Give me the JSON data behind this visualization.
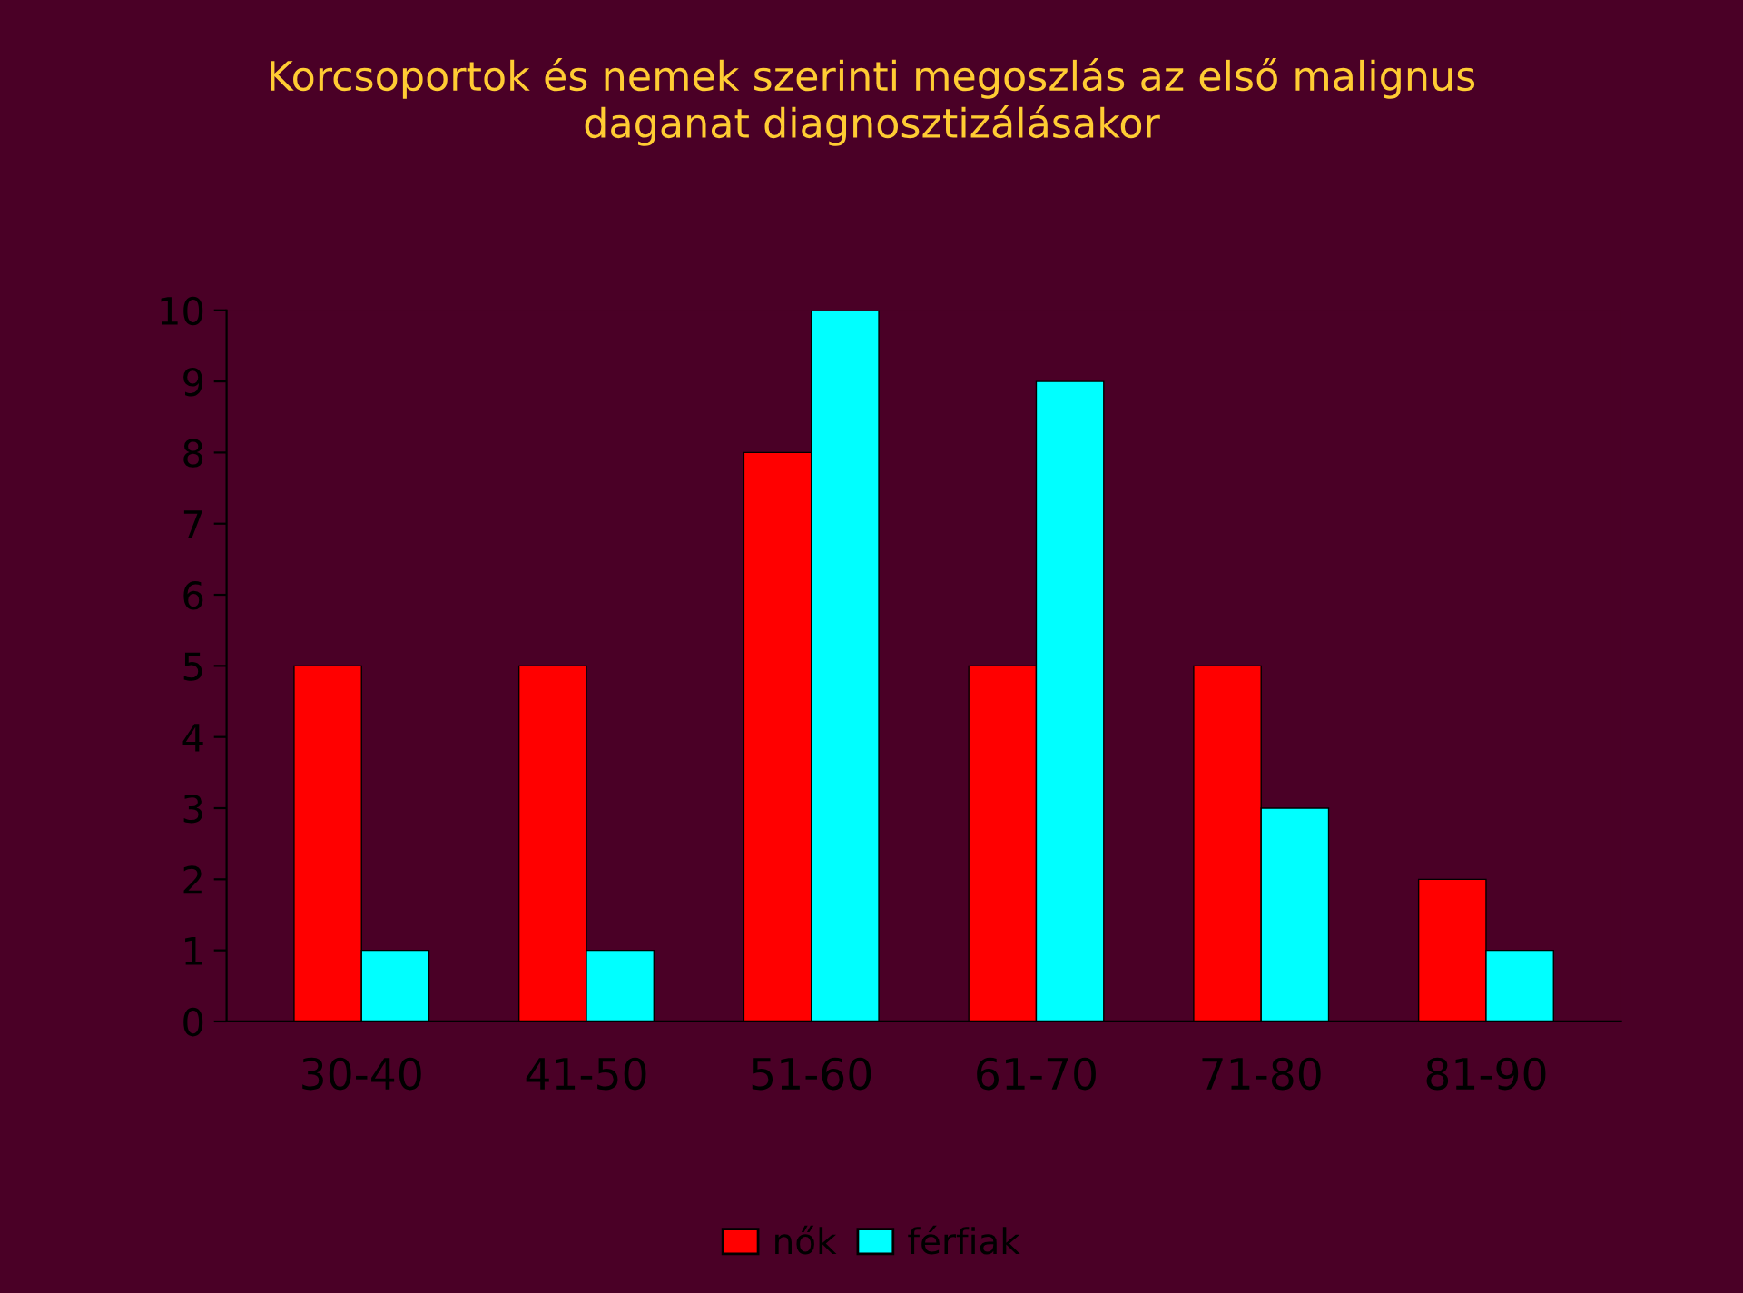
{
  "chart_data": {
    "type": "bar",
    "title": "Korcsoportok és nemek szerinti megoszlás az első malignus\ndaganat diagnosztizálásakor",
    "categories": [
      "30-40",
      "41-50",
      "51-60",
      "61-70",
      "71-80",
      "81-90"
    ],
    "series": [
      {
        "name": "nők",
        "color": "#ff0000",
        "values": [
          5,
          5,
          8,
          5,
          5,
          2
        ]
      },
      {
        "name": "férfiak",
        "color": "#00ffff",
        "values": [
          1,
          1,
          10,
          9,
          3,
          1
        ]
      }
    ],
    "ylim": [
      0,
      10
    ],
    "yticks": [
      0,
      1,
      2,
      3,
      4,
      5,
      6,
      7,
      8,
      9,
      10
    ],
    "grid": false,
    "legend": "bottom"
  }
}
